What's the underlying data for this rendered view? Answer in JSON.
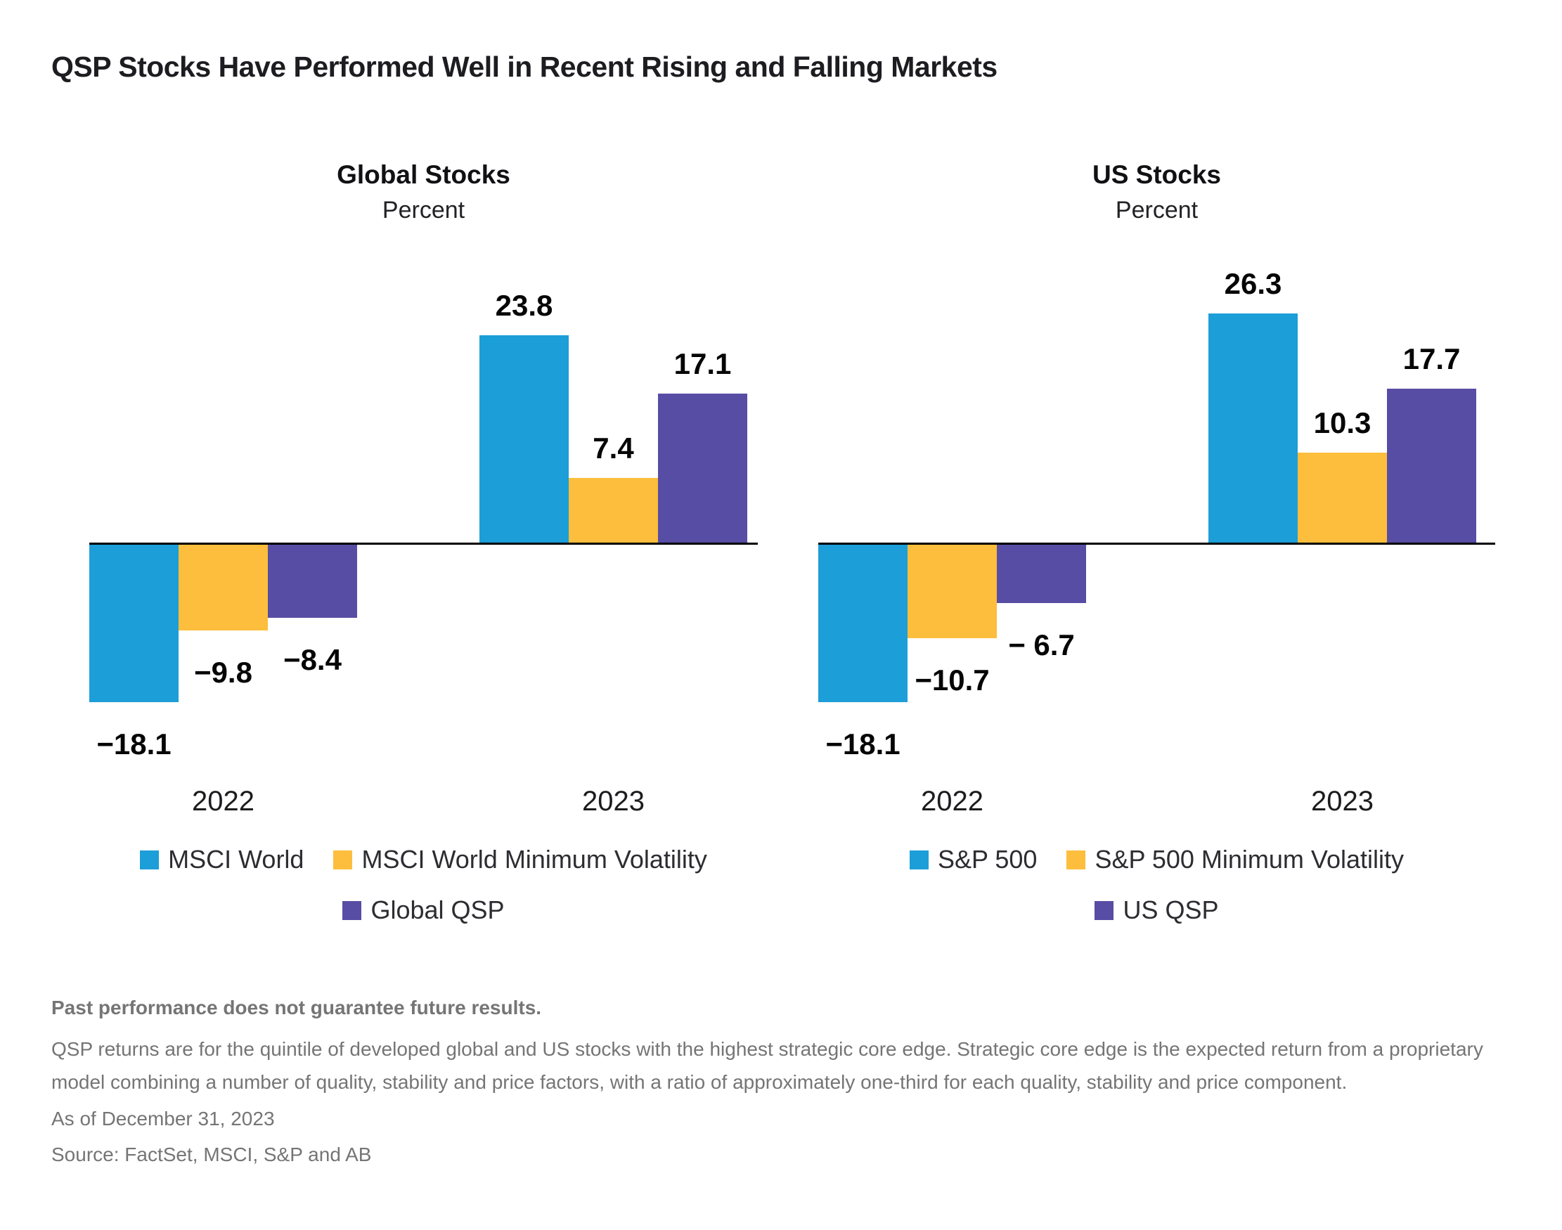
{
  "title": "QSP Stocks Have Performed Well in Recent Rising and Falling Markets",
  "colors": {
    "blue": "#1C9ED8",
    "yellow": "#FCBE3C",
    "purple": "#574DA4",
    "axis": "#000000",
    "footer_gray": "#757575"
  },
  "chart_data": [
    {
      "type": "bar",
      "title": "Global Stocks",
      "subtitle": "Percent",
      "categories": [
        "2022",
        "2023"
      ],
      "series": [
        {
          "name": "MSCI World",
          "color_key": "blue",
          "values": [
            -18.1,
            23.8
          ],
          "labels": [
            "−18.1",
            "23.8"
          ]
        },
        {
          "name": "MSCI World Minimum Volatility",
          "color_key": "yellow",
          "values": [
            -9.8,
            7.4
          ],
          "labels": [
            "−9.8",
            "7.4"
          ]
        },
        {
          "name": "Global QSP",
          "color_key": "purple",
          "values": [
            -8.4,
            17.1
          ],
          "labels": [
            "−8.4",
            "17.1"
          ]
        }
      ],
      "ylim": [
        -22,
        30
      ],
      "grid": false,
      "legend_position": "bottom"
    },
    {
      "type": "bar",
      "title": "US Stocks",
      "subtitle": "Percent",
      "categories": [
        "2022",
        "2023"
      ],
      "series": [
        {
          "name": "S&P 500",
          "color_key": "blue",
          "values": [
            -18.1,
            26.3
          ],
          "labels": [
            "−18.1",
            "26.3"
          ]
        },
        {
          "name": "S&P 500 Minimum Volatility",
          "color_key": "yellow",
          "values": [
            -10.7,
            10.3
          ],
          "labels": [
            "−10.7",
            "10.3"
          ]
        },
        {
          "name": "US QSP",
          "color_key": "purple",
          "values": [
            -6.7,
            17.7
          ],
          "labels": [
            "− 6.7",
            "17.7"
          ]
        }
      ],
      "ylim": [
        -22,
        30
      ],
      "grid": false,
      "legend_position": "bottom"
    }
  ],
  "footer": {
    "disclaimer": "Past performance does not guarantee future results.",
    "body": "QSP returns are for the quintile of developed global and US stocks with the highest strategic core edge. Strategic core edge is the expected return from a proprietary model combining a number of quality, stability and price factors, with a ratio of approximately one-third for each quality, stability and price component.",
    "as_of": "As of December 31, 2023",
    "source": "Source: FactSet, MSCI, S&P and AB"
  }
}
